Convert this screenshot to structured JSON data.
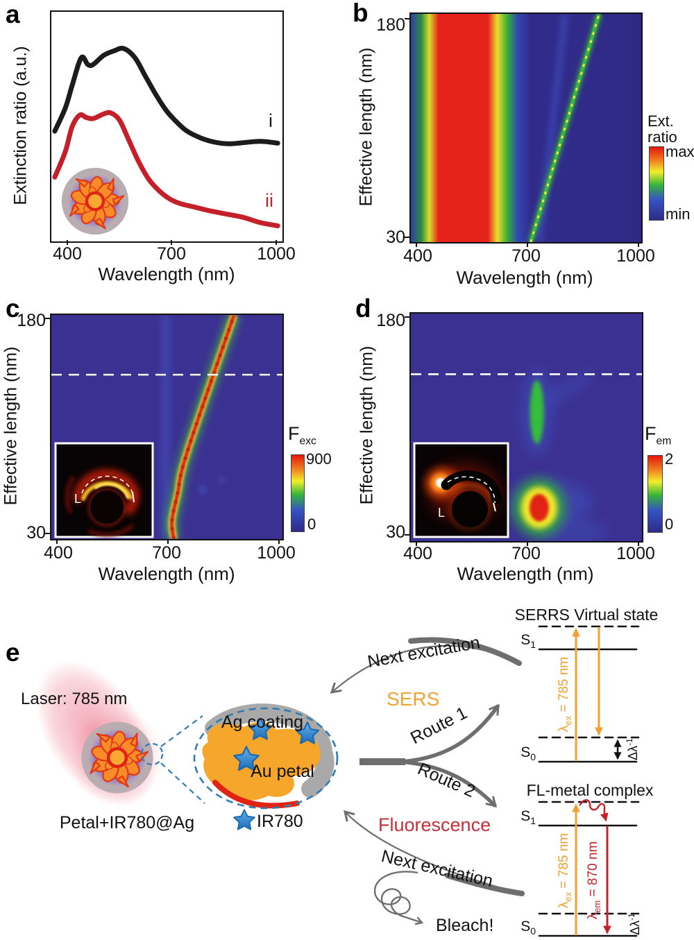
{
  "panel_a": {
    "label": "a",
    "y_axis": "Extinction ratio (a.u.)",
    "x_axis": "Wavelength (nm)",
    "x_ticks": [
      "400",
      "700",
      "1000"
    ]
  },
  "panel_b": {
    "label": "b",
    "y_axis": "Effective length (nm)",
    "x_axis": "Wavelength (nm)",
    "x_ticks": [
      "400",
      "700",
      "1000"
    ],
    "y_ticks": [
      "180",
      "30"
    ],
    "colorbar": {
      "line1": "Ext.",
      "line2": "ratio",
      "max": "max",
      "min": "min"
    }
  },
  "panel_c": {
    "label": "c",
    "y_axis": "Effective length (nm)",
    "x_axis": "Wavelength (nm)",
    "x_ticks": [
      "400",
      "700",
      "1000"
    ],
    "y_ticks": [
      "180",
      "30"
    ],
    "colorbar": {
      "main": "F",
      "sub": "exc",
      "max": "900",
      "min": "0"
    },
    "inset_label": "L"
  },
  "panel_d": {
    "label": "d",
    "y_axis": "Effective length (nm)",
    "x_axis": "Wavelength (nm)",
    "x_ticks": [
      "400",
      "700",
      "1000"
    ],
    "y_ticks": [
      "180",
      "30"
    ],
    "colorbar": {
      "main": "F",
      "sub": "em",
      "max": "2",
      "min": "0"
    },
    "inset_label": "L"
  },
  "panel_e": {
    "label": "e",
    "laser_label": "Laser: 785 nm",
    "particle_label": "Petal+IR780@Ag",
    "ag_coating": "Ag coating",
    "au_petal": "Au petal",
    "ir780": "IR780",
    "sers": "SERS",
    "fluorescence": "Fluorescence",
    "route1": "Route 1",
    "route2": "Route 2",
    "next_excitation_top": "Next excitation",
    "next_excitation_bottom": "Next excitation",
    "bleach": "Bleach!",
    "serrs": {
      "title": "SERRS Virtual state",
      "s1": {
        "base": "S",
        "sub": "1"
      },
      "s0": {
        "base": "S",
        "sub": "0"
      },
      "lambda_ex": {
        "sym": "λ",
        "sub": "ex",
        "rest": " = 785 nm"
      },
      "delta": {
        "base": "Δλ",
        "sup": "-1"
      }
    },
    "fl": {
      "title": "FL-metal complex",
      "s1": {
        "base": "S",
        "sub": "1"
      },
      "s0": {
        "base": "S",
        "sub": "0"
      },
      "lambda_ex": {
        "sym": "λ",
        "sub": "ex",
        "rest": " = 785 nm"
      },
      "lambda_em": {
        "sym": "λ",
        "sub": "em",
        "rest": " = 870 nm"
      },
      "delta": {
        "base": "Δλ",
        "sup": "-1"
      }
    }
  },
  "chart_data": [
    {
      "type": "line",
      "panel": "a",
      "xlabel": "Wavelength (nm)",
      "ylabel": "Extinction ratio (a.u.)",
      "x_range": [
        350,
        1010
      ],
      "x_ticks": [
        400,
        700,
        1000
      ],
      "y_units": "a.u. (normalized 0-1)",
      "series": [
        {
          "name": "i",
          "color": "#1c1c1c",
          "points": [
            [
              360,
              0.48
            ],
            [
              390,
              0.58
            ],
            [
              410,
              0.68
            ],
            [
              436,
              0.8
            ],
            [
              455,
              0.77
            ],
            [
              470,
              0.77
            ],
            [
              500,
              0.81
            ],
            [
              530,
              0.83
            ],
            [
              558,
              0.84
            ],
            [
              590,
              0.8
            ],
            [
              620,
              0.72
            ],
            [
              650,
              0.64
            ],
            [
              680,
              0.57
            ],
            [
              710,
              0.52
            ],
            [
              740,
              0.48
            ],
            [
              780,
              0.45
            ],
            [
              820,
              0.432
            ],
            [
              860,
              0.425
            ],
            [
              900,
              0.43
            ],
            [
              950,
              0.436
            ],
            [
              1000,
              0.428
            ]
          ]
        },
        {
          "name": "ii",
          "color": "#c4202a",
          "points": [
            [
              360,
              0.28
            ],
            [
              390,
              0.39
            ],
            [
              410,
              0.5
            ],
            [
              432,
              0.55
            ],
            [
              450,
              0.54
            ],
            [
              470,
              0.535
            ],
            [
              500,
              0.555
            ],
            [
              520,
              0.56
            ],
            [
              545,
              0.53
            ],
            [
              570,
              0.45
            ],
            [
              600,
              0.35
            ],
            [
              630,
              0.27
            ],
            [
              660,
              0.22
            ],
            [
              690,
              0.185
            ],
            [
              720,
              0.165
            ],
            [
              760,
              0.15
            ],
            [
              800,
              0.135
            ],
            [
              850,
              0.12
            ],
            [
              900,
              0.105
            ],
            [
              950,
              0.082
            ],
            [
              1000,
              0.068
            ]
          ]
        }
      ]
    },
    {
      "type": "heatmap",
      "panel": "b",
      "xlabel": "Wavelength (nm)",
      "ylabel": "Effective length (nm)",
      "x_range": [
        400,
        1000
      ],
      "y_range": [
        30,
        180
      ],
      "colorbar": {
        "title": "Ext. ratio",
        "max": "max",
        "min": "min"
      },
      "features": {
        "plasmon_band": {
          "x_range": [
            450,
            610
          ],
          "intensity": "max"
        },
        "diagonal_mode": {
          "points": [
            [
              705,
              30
            ],
            [
              890,
              180
            ]
          ]
        },
        "secondary_band": {
          "points": [
            [
              728,
              30
            ],
            [
              798,
              180
            ]
          ]
        }
      }
    },
    {
      "type": "heatmap",
      "panel": "c",
      "xlabel": "Wavelength (nm)",
      "ylabel": "Effective length (nm)",
      "x_range": [
        400,
        1000
      ],
      "y_range": [
        30,
        180
      ],
      "colorbar": {
        "title": "F_exc",
        "max": 900,
        "min": 0
      },
      "features": {
        "diagonal_mode": {
          "points": [
            [
              712,
              30
            ],
            [
              707,
              42
            ],
            [
              722,
              60
            ],
            [
              748,
              88
            ],
            [
              875,
              180
            ]
          ],
          "peak_value": 900
        },
        "vertical_band_wavelength": 690,
        "dashed_line_len": 140
      }
    },
    {
      "type": "heatmap",
      "panel": "d",
      "xlabel": "Wavelength (nm)",
      "ylabel": "Effective length (nm)",
      "x_range": [
        400,
        1000
      ],
      "y_range": [
        30,
        180
      ],
      "colorbar": {
        "title": "F_em",
        "max": 2,
        "min": 0
      },
      "features": {
        "dashed_line_len": 140,
        "excited_mode": {
          "x": 722,
          "y": 115
        },
        "emission_hotspot": {
          "x": 728,
          "y": 52,
          "peak_value": 2
        },
        "halo": {
          "x": 760,
          "y": 55
        }
      }
    }
  ]
}
